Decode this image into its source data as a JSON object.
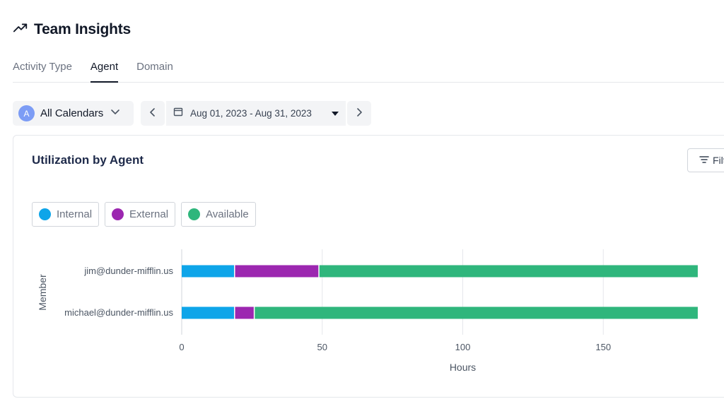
{
  "header": {
    "title": "Team Insights",
    "icon": "trending-up-icon"
  },
  "tabs": [
    {
      "label": "Activity Type",
      "active": false
    },
    {
      "label": "Agent",
      "active": true
    },
    {
      "label": "Domain",
      "active": false
    }
  ],
  "toolbar": {
    "calendar_avatar": "A",
    "calendar_label": "All Calendars",
    "date_range": "Aug 01, 2023 - Aug 31, 2023"
  },
  "card": {
    "title": "Utilization by Agent",
    "filter_label": "Filt"
  },
  "legend": [
    {
      "label": "Internal",
      "color": "#0ea5e9"
    },
    {
      "label": "External",
      "color": "#9c27b0"
    },
    {
      "label": "Available",
      "color": "#2fb67c"
    }
  ],
  "chart_data": {
    "type": "bar",
    "orientation": "horizontal",
    "stacked": true,
    "categories": [
      "jim@dunder-mifflin.us",
      "michael@dunder-mifflin.us"
    ],
    "series": [
      {
        "name": "Internal",
        "color": "#0ea5e9",
        "values": [
          19,
          19
        ]
      },
      {
        "name": "External",
        "color": "#9c27b0",
        "values": [
          30,
          7
        ]
      },
      {
        "name": "Available",
        "color": "#2fb67c",
        "values": [
          135,
          158
        ]
      }
    ],
    "xlabel": "Hours",
    "ylabel": "Member",
    "xlim": [
      0,
      175
    ],
    "xticks": [
      0,
      50,
      100,
      150
    ],
    "grid": true
  }
}
